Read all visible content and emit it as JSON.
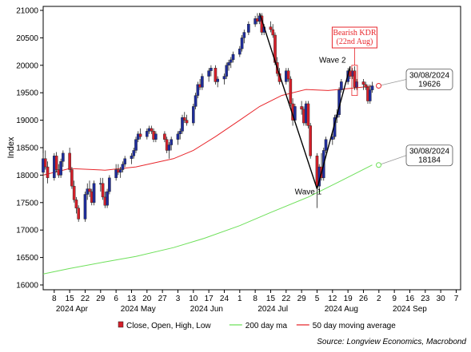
{
  "chart_data": {
    "type": "candlestick",
    "ylabel": "Index",
    "ylim": [
      16000,
      21000
    ],
    "yticks": [
      16000,
      16500,
      17000,
      17500,
      18000,
      18500,
      19000,
      19500,
      20000,
      20500,
      21000
    ],
    "xticks": [
      {
        "label": "8",
        "date": "2024-04-08"
      },
      {
        "label": "15",
        "date": "2024-04-15"
      },
      {
        "label": "22",
        "date": "2024-04-22"
      },
      {
        "label": "29",
        "date": "2024-04-29"
      },
      {
        "label": "6",
        "date": "2024-05-06"
      },
      {
        "label": "13",
        "date": "2024-05-13"
      },
      {
        "label": "20",
        "date": "2024-05-20"
      },
      {
        "label": "27",
        "date": "2024-05-27"
      },
      {
        "label": "3",
        "date": "2024-06-03"
      },
      {
        "label": "10",
        "date": "2024-06-10"
      },
      {
        "label": "17",
        "date": "2024-06-17"
      },
      {
        "label": "24",
        "date": "2024-06-24"
      },
      {
        "label": "1",
        "date": "2024-07-01"
      },
      {
        "label": "8",
        "date": "2024-07-08"
      },
      {
        "label": "15",
        "date": "2024-07-15"
      },
      {
        "label": "22",
        "date": "2024-07-22"
      },
      {
        "label": "29",
        "date": "2024-07-29"
      },
      {
        "label": "5",
        "date": "2024-08-05"
      },
      {
        "label": "12",
        "date": "2024-08-12"
      },
      {
        "label": "19",
        "date": "2024-08-19"
      },
      {
        "label": "26",
        "date": "2024-08-26"
      },
      {
        "label": "2",
        "date": "2024-09-02"
      },
      {
        "label": "9",
        "date": "2024-09-09"
      },
      {
        "label": "16",
        "date": "2024-09-16"
      },
      {
        "label": "23",
        "date": "2024-09-23"
      },
      {
        "label": "30",
        "date": "2024-09-30"
      },
      {
        "label": "7",
        "date": "2024-10-07"
      }
    ],
    "month_labels": [
      {
        "label": "2024 Apr",
        "date": "2024-04-16"
      },
      {
        "label": "2024 May",
        "date": "2024-05-16"
      },
      {
        "label": "2024 Jun",
        "date": "2024-06-16"
      },
      {
        "label": "2024 Jul",
        "date": "2024-07-16"
      },
      {
        "label": "2024 Aug",
        "date": "2024-08-16"
      },
      {
        "label": "2024 Sep",
        "date": "2024-09-16"
      }
    ],
    "x_start": "2024-04-03",
    "x_end": "2024-10-09",
    "series": [
      {
        "name": "Close, Open, High, Low",
        "kind": "candle",
        "up_color": "#1f2d9b",
        "down_color": "#d4202a",
        "ohlc": [
          [
            "2024-04-03",
            18050,
            18400,
            17950,
            18300
          ],
          [
            "2024-04-04",
            18300,
            18450,
            18100,
            18150
          ],
          [
            "2024-04-05",
            18150,
            18250,
            17850,
            17950
          ],
          [
            "2024-04-08",
            17950,
            18400,
            17900,
            18350
          ],
          [
            "2024-04-09",
            18350,
            18420,
            18050,
            18100
          ],
          [
            "2024-04-10",
            18100,
            18200,
            17950,
            18000
          ],
          [
            "2024-04-11",
            18000,
            18300,
            17950,
            18250
          ],
          [
            "2024-04-12",
            18250,
            18450,
            18150,
            18400
          ],
          [
            "2024-04-15",
            18400,
            18500,
            18050,
            18100
          ],
          [
            "2024-04-16",
            18100,
            18150,
            17750,
            17800
          ],
          [
            "2024-04-17",
            17800,
            17900,
            17500,
            17550
          ],
          [
            "2024-04-18",
            17550,
            17600,
            17300,
            17400
          ],
          [
            "2024-04-19",
            17400,
            17450,
            17150,
            17200
          ],
          [
            "2024-04-22",
            17200,
            17700,
            17150,
            17650
          ],
          [
            "2024-04-23",
            17650,
            17850,
            17550,
            17750
          ],
          [
            "2024-04-24",
            17750,
            17900,
            17600,
            17700
          ],
          [
            "2024-04-25",
            17700,
            17750,
            17450,
            17500
          ],
          [
            "2024-04-26",
            17500,
            17900,
            17450,
            17850
          ],
          [
            "2024-04-29",
            17850,
            17950,
            17700,
            17850
          ],
          [
            "2024-04-30",
            17850,
            17950,
            17550,
            17600
          ],
          [
            "2024-05-01",
            17600,
            17700,
            17400,
            17450
          ],
          [
            "2024-05-02",
            17450,
            17750,
            17400,
            17700
          ],
          [
            "2024-05-03",
            17700,
            18000,
            17650,
            17950
          ],
          [
            "2024-05-06",
            17950,
            18200,
            17900,
            18100
          ],
          [
            "2024-05-07",
            18100,
            18200,
            18000,
            18050
          ],
          [
            "2024-05-08",
            18050,
            18150,
            17950,
            18100
          ],
          [
            "2024-05-09",
            18100,
            18250,
            18050,
            18200
          ],
          [
            "2024-05-10",
            18200,
            18350,
            18150,
            18300
          ],
          [
            "2024-05-13",
            18300,
            18400,
            18200,
            18350
          ],
          [
            "2024-05-14",
            18350,
            18500,
            18300,
            18450
          ],
          [
            "2024-05-15",
            18450,
            18700,
            18400,
            18650
          ],
          [
            "2024-05-16",
            18650,
            18800,
            18600,
            18750
          ],
          [
            "2024-05-17",
            18750,
            18850,
            18650,
            18700
          ],
          [
            "2024-05-20",
            18700,
            18850,
            18650,
            18800
          ],
          [
            "2024-05-21",
            18800,
            18900,
            18750,
            18850
          ],
          [
            "2024-05-22",
            18850,
            18900,
            18750,
            18800
          ],
          [
            "2024-05-23",
            18800,
            18850,
            18600,
            18650
          ],
          [
            "2024-05-24",
            18650,
            18800,
            18600,
            18750
          ],
          [
            "2024-05-28",
            18750,
            18800,
            18600,
            18650
          ],
          [
            "2024-05-29",
            18650,
            18700,
            18400,
            18450
          ],
          [
            "2024-05-30",
            18450,
            18600,
            18300,
            18550
          ],
          [
            "2024-05-31",
            18550,
            18700,
            18450,
            18650
          ],
          [
            "2024-06-03",
            18650,
            18800,
            18550,
            18750
          ],
          [
            "2024-06-04",
            18750,
            18850,
            18650,
            18800
          ],
          [
            "2024-06-05",
            18800,
            19100,
            18750,
            19050
          ],
          [
            "2024-06-06",
            19050,
            19150,
            18950,
            19000
          ],
          [
            "2024-06-07",
            19000,
            19100,
            18900,
            18950
          ],
          [
            "2024-06-10",
            18950,
            19300,
            18900,
            19250
          ],
          [
            "2024-06-11",
            19250,
            19500,
            19200,
            19450
          ],
          [
            "2024-06-12",
            19450,
            19700,
            19400,
            19650
          ],
          [
            "2024-06-13",
            19650,
            19750,
            19550,
            19600
          ],
          [
            "2024-06-14",
            19600,
            19850,
            19550,
            19800
          ],
          [
            "2024-06-17",
            19800,
            19950,
            19700,
            19900
          ],
          [
            "2024-06-18",
            19900,
            20000,
            19800,
            19950
          ],
          [
            "2024-06-20",
            19950,
            20000,
            19650,
            19700
          ],
          [
            "2024-06-21",
            19700,
            19800,
            19600,
            19750
          ],
          [
            "2024-06-24",
            19750,
            19850,
            19650,
            19800
          ],
          [
            "2024-06-25",
            19800,
            20050,
            19750,
            20000
          ],
          [
            "2024-06-26",
            20000,
            20100,
            19900,
            20050
          ],
          [
            "2024-06-27",
            20050,
            20150,
            19950,
            20100
          ],
          [
            "2024-06-28",
            20100,
            20250,
            20050,
            20200
          ],
          [
            "2024-07-01",
            20200,
            20350,
            20150,
            20300
          ],
          [
            "2024-07-02",
            20300,
            20550,
            20250,
            20500
          ],
          [
            "2024-07-03",
            20500,
            20650,
            20400,
            20600
          ],
          [
            "2024-07-05",
            20600,
            20800,
            20550,
            20750
          ],
          [
            "2024-07-08",
            20750,
            20900,
            20700,
            20850
          ],
          [
            "2024-07-09",
            20850,
            20950,
            20750,
            20800
          ],
          [
            "2024-07-10",
            20800,
            20950,
            20750,
            20900
          ],
          [
            "2024-07-11",
            20900,
            20950,
            20550,
            20600
          ],
          [
            "2024-07-12",
            20600,
            20750,
            20550,
            20700
          ],
          [
            "2024-07-15",
            20700,
            20800,
            20600,
            20650
          ],
          [
            "2024-07-16",
            20650,
            20750,
            20500,
            20550
          ],
          [
            "2024-07-17",
            20550,
            20600,
            20000,
            20050
          ],
          [
            "2024-07-18",
            20050,
            20150,
            19800,
            19850
          ],
          [
            "2024-07-19",
            19850,
            19950,
            19650,
            19700
          ],
          [
            "2024-07-22",
            19700,
            19950,
            19650,
            19900
          ],
          [
            "2024-07-23",
            19900,
            19950,
            19700,
            19750
          ],
          [
            "2024-07-24",
            19750,
            19800,
            19250,
            19300
          ],
          [
            "2024-07-25",
            19300,
            19400,
            18900,
            19000
          ],
          [
            "2024-07-26",
            19000,
            19300,
            18950,
            19250
          ],
          [
            "2024-07-29",
            19250,
            19350,
            19100,
            19200
          ],
          [
            "2024-07-30",
            19200,
            19250,
            18900,
            18950
          ],
          [
            "2024-07-31",
            18950,
            19350,
            18900,
            19300
          ],
          [
            "2024-08-01",
            19300,
            19350,
            18850,
            18900
          ],
          [
            "2024-08-02",
            18900,
            18950,
            18300,
            18350
          ],
          [
            "2024-08-05",
            18350,
            18400,
            17400,
            17800
          ],
          [
            "2024-08-06",
            17800,
            18200,
            17700,
            18150
          ],
          [
            "2024-08-07",
            18150,
            18400,
            17900,
            17950
          ],
          [
            "2024-08-08",
            17950,
            18500,
            17900,
            18450
          ],
          [
            "2024-08-09",
            18450,
            18700,
            18400,
            18650
          ],
          [
            "2024-08-12",
            18650,
            18800,
            18550,
            18700
          ],
          [
            "2024-08-13",
            18700,
            19100,
            18650,
            19050
          ],
          [
            "2024-08-14",
            19050,
            19200,
            18950,
            19100
          ],
          [
            "2024-08-15",
            19100,
            19600,
            19050,
            19550
          ],
          [
            "2024-08-16",
            19550,
            19750,
            19500,
            19700
          ],
          [
            "2024-08-19",
            19700,
            19950,
            19650,
            19900
          ],
          [
            "2024-08-20",
            19900,
            19950,
            19750,
            19800
          ],
          [
            "2024-08-21",
            19800,
            19950,
            19750,
            19900
          ],
          [
            "2024-08-22",
            19900,
            19980,
            19550,
            19600
          ],
          [
            "2024-08-23",
            19600,
            19750,
            19550,
            19700
          ],
          [
            "2024-08-26",
            19700,
            19750,
            19550,
            19650
          ],
          [
            "2024-08-27",
            19650,
            19700,
            19550,
            19600
          ],
          [
            "2024-08-28",
            19600,
            19650,
            19300,
            19350
          ],
          [
            "2024-08-29",
            19350,
            19650,
            19300,
            19550
          ],
          [
            "2024-08-30",
            19550,
            19700,
            19500,
            19626
          ]
        ]
      },
      {
        "name": "200 day ma",
        "kind": "line",
        "color": "#6ee05a",
        "points": [
          [
            "2024-04-03",
            16200
          ],
          [
            "2024-04-15",
            16300
          ],
          [
            "2024-05-01",
            16420
          ],
          [
            "2024-05-15",
            16520
          ],
          [
            "2024-06-01",
            16680
          ],
          [
            "2024-06-15",
            16850
          ],
          [
            "2024-07-01",
            17080
          ],
          [
            "2024-07-15",
            17320
          ],
          [
            "2024-08-01",
            17600
          ],
          [
            "2024-08-15",
            17880
          ],
          [
            "2024-08-30",
            18184
          ]
        ]
      },
      {
        "name": "50 day moving average",
        "kind": "line",
        "color": "#e8262b",
        "points": [
          [
            "2024-04-03",
            18000
          ],
          [
            "2024-04-15",
            18120
          ],
          [
            "2024-05-01",
            18090
          ],
          [
            "2024-05-15",
            18150
          ],
          [
            "2024-06-01",
            18300
          ],
          [
            "2024-06-10",
            18450
          ],
          [
            "2024-06-20",
            18700
          ],
          [
            "2024-07-01",
            19000
          ],
          [
            "2024-07-10",
            19250
          ],
          [
            "2024-07-20",
            19450
          ],
          [
            "2024-07-31",
            19560
          ],
          [
            "2024-08-10",
            19540
          ],
          [
            "2024-08-20",
            19580
          ],
          [
            "2024-08-30",
            19620
          ]
        ]
      }
    ],
    "wave_lines": [
      {
        "from": [
          "2024-07-10",
          20950
        ],
        "to": [
          "2024-07-18",
          19950
        ]
      },
      {
        "from": [
          "2024-07-18",
          19950
        ],
        "to": [
          "2024-08-05",
          17750
        ]
      },
      {
        "from": [
          "2024-08-05",
          17750
        ],
        "to": [
          "2024-08-20",
          19980
        ]
      }
    ],
    "annotations": [
      {
        "text": "Wave 1",
        "date": "2024-08-01",
        "value": 17650
      },
      {
        "text": "Wave 2",
        "date": "2024-08-12",
        "value": 20050
      },
      {
        "text_lines": [
          "Bearish KDR",
          "(22nd Aug)"
        ],
        "date": "2024-08-22",
        "value": 20520,
        "style": "kdr"
      }
    ],
    "callouts": [
      {
        "lines": [
          "30/08/2024",
          "19626"
        ],
        "date": "2024-08-30",
        "value": 19626,
        "color": "#e8262b"
      },
      {
        "lines": [
          "30/08/2024",
          "18184"
        ],
        "date": "2024-08-30",
        "value": 18184,
        "color": "#6ee05a"
      }
    ],
    "legend": [
      "Close, Open, High, Low",
      "200 day ma",
      "50 day moving average"
    ],
    "source": "Source: Longview Economics, Macrobond"
  }
}
